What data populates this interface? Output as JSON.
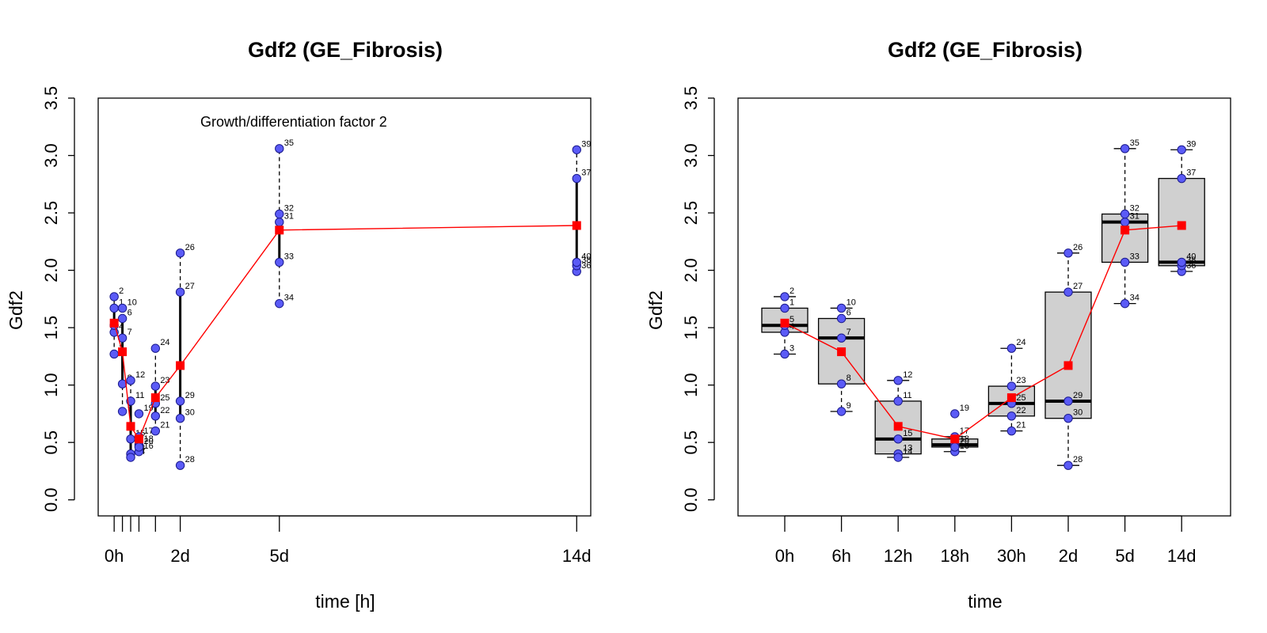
{
  "chart_data": [
    {
      "type": "scatter",
      "title": "Gdf2 (GE_Fibrosis)",
      "xlabel": "time [h]",
      "ylabel": "Gdf2",
      "annotation": "Growth/differentiation factor 2",
      "xlim": [
        -11.6,
        346.2
      ],
      "ylim": [
        -0.14,
        3.5
      ],
      "yticks": [
        0.0,
        0.5,
        1.0,
        1.5,
        2.0,
        2.5,
        3.0,
        3.5
      ],
      "xticks": [
        {
          "x": 0,
          "label": "0h"
        },
        {
          "x": 6,
          "label": ""
        },
        {
          "x": 12,
          "label": ""
        },
        {
          "x": 18,
          "label": ""
        },
        {
          "x": 30,
          "label": ""
        },
        {
          "x": 48,
          "label": "2d"
        },
        {
          "x": 120,
          "label": "5d"
        },
        {
          "x": 336,
          "label": "14d"
        }
      ],
      "groups": [
        {
          "x": 0,
          "range": [
            1.27,
            1.77
          ],
          "iqr": [
            1.46,
            1.67
          ]
        },
        {
          "x": 6,
          "range": [
            0.77,
            1.67
          ],
          "iqr": [
            1.01,
            1.58
          ]
        },
        {
          "x": 12,
          "range": [
            0.37,
            1.04
          ],
          "iqr": [
            0.4,
            0.86
          ]
        },
        {
          "x": 18,
          "range": [
            0.42,
            0.55
          ],
          "iqr": [
            0.46,
            0.53
          ]
        },
        {
          "x": 30,
          "range": [
            0.6,
            1.32
          ],
          "iqr": [
            0.73,
            0.99
          ]
        },
        {
          "x": 48,
          "range": [
            0.3,
            2.15
          ],
          "iqr": [
            0.71,
            1.81
          ]
        },
        {
          "x": 120,
          "range": [
            1.71,
            3.06
          ],
          "iqr": [
            2.07,
            2.49
          ]
        },
        {
          "x": 336,
          "range": [
            1.99,
            3.05
          ],
          "iqr": [
            2.04,
            2.8
          ]
        }
      ],
      "mean_line": {
        "x": [
          0,
          6,
          12,
          18,
          30,
          48,
          120,
          336
        ],
        "y": [
          1.54,
          1.29,
          0.64,
          0.53,
          0.89,
          1.17,
          2.35,
          2.39
        ]
      }
    },
    {
      "type": "box",
      "title": "Gdf2 (GE_Fibrosis)",
      "xlabel": "time",
      "ylabel": "Gdf2",
      "ylim": [
        -0.14,
        3.5
      ],
      "yticks": [
        0.0,
        0.5,
        1.0,
        1.5,
        2.0,
        2.5,
        3.0,
        3.5
      ],
      "categories": [
        "0h",
        "6h",
        "12h",
        "18h",
        "30h",
        "2d",
        "5d",
        "14d"
      ],
      "boxes": [
        {
          "min": 1.27,
          "q1": 1.46,
          "median": 1.52,
          "q3": 1.67,
          "max": 1.77
        },
        {
          "min": 0.77,
          "q1": 1.01,
          "median": 1.41,
          "q3": 1.58,
          "max": 1.67
        },
        {
          "min": 0.37,
          "q1": 0.4,
          "median": 0.53,
          "q3": 0.86,
          "max": 1.04
        },
        {
          "min": 0.42,
          "q1": 0.46,
          "median": 0.48,
          "q3": 0.53,
          "max": 0.55
        },
        {
          "min": 0.6,
          "q1": 0.73,
          "median": 0.84,
          "q3": 0.99,
          "max": 1.32
        },
        {
          "min": 0.3,
          "q1": 0.71,
          "median": 0.86,
          "q3": 1.81,
          "max": 2.15
        },
        {
          "min": 1.71,
          "q1": 2.07,
          "median": 2.42,
          "q3": 2.49,
          "max": 3.06
        },
        {
          "min": 1.99,
          "q1": 2.04,
          "median": 2.07,
          "q3": 2.8,
          "max": 3.05
        }
      ],
      "outliers": [
        {
          "group": 3,
          "value": 0.75,
          "label": "19"
        }
      ],
      "means": [
        1.54,
        1.29,
        0.64,
        0.53,
        0.89,
        1.17,
        2.35,
        2.39
      ]
    }
  ],
  "points": [
    {
      "id": "1",
      "group": 0,
      "value": 1.67
    },
    {
      "id": "2",
      "group": 0,
      "value": 1.77
    },
    {
      "id": "3",
      "group": 0,
      "value": 1.27
    },
    {
      "id": "4",
      "group": 0,
      "value": 1.46
    },
    {
      "id": "5",
      "group": 0,
      "value": 1.52
    },
    {
      "id": "6",
      "group": 1,
      "value": 1.58
    },
    {
      "id": "7",
      "group": 1,
      "value": 1.41
    },
    {
      "id": "8",
      "group": 1,
      "value": 1.01
    },
    {
      "id": "9",
      "group": 1,
      "value": 0.77
    },
    {
      "id": "10",
      "group": 1,
      "value": 1.67
    },
    {
      "id": "11",
      "group": 2,
      "value": 0.86
    },
    {
      "id": "12",
      "group": 2,
      "value": 1.04
    },
    {
      "id": "13",
      "group": 2,
      "value": 0.4
    },
    {
      "id": "14",
      "group": 2,
      "value": 0.37
    },
    {
      "id": "15",
      "group": 2,
      "value": 0.53
    },
    {
      "id": "16",
      "group": 3,
      "value": 0.42
    },
    {
      "id": "17",
      "group": 3,
      "value": 0.55
    },
    {
      "id": "18",
      "group": 3,
      "value": 0.48
    },
    {
      "id": "19",
      "group": 3,
      "value": 0.75
    },
    {
      "id": "20",
      "group": 3,
      "value": 0.46
    },
    {
      "id": "21",
      "group": 4,
      "value": 0.6
    },
    {
      "id": "22",
      "group": 4,
      "value": 0.73
    },
    {
      "id": "23",
      "group": 4,
      "value": 0.99
    },
    {
      "id": "24",
      "group": 4,
      "value": 1.32
    },
    {
      "id": "25",
      "group": 4,
      "value": 0.84
    },
    {
      "id": "26",
      "group": 5,
      "value": 2.15
    },
    {
      "id": "27",
      "group": 5,
      "value": 1.81
    },
    {
      "id": "28",
      "group": 5,
      "value": 0.3
    },
    {
      "id": "29",
      "group": 5,
      "value": 0.86
    },
    {
      "id": "30",
      "group": 5,
      "value": 0.71
    },
    {
      "id": "31",
      "group": 6,
      "value": 2.42
    },
    {
      "id": "32",
      "group": 6,
      "value": 2.49
    },
    {
      "id": "33",
      "group": 6,
      "value": 2.07
    },
    {
      "id": "34",
      "group": 6,
      "value": 1.71
    },
    {
      "id": "35",
      "group": 6,
      "value": 3.06
    },
    {
      "id": "36",
      "group": 7,
      "value": 1.99
    },
    {
      "id": "37",
      "group": 7,
      "value": 2.8
    },
    {
      "id": "38",
      "group": 7,
      "value": 2.04
    },
    {
      "id": "39",
      "group": 7,
      "value": 3.05
    },
    {
      "id": "40",
      "group": 7,
      "value": 2.07
    }
  ],
  "colors": {
    "point_fill": "#5b5bf6",
    "point_stroke": "#1a1a8c",
    "mean": "#ff0000",
    "box_fill": "#d0d0d0",
    "axis": "#000000"
  }
}
